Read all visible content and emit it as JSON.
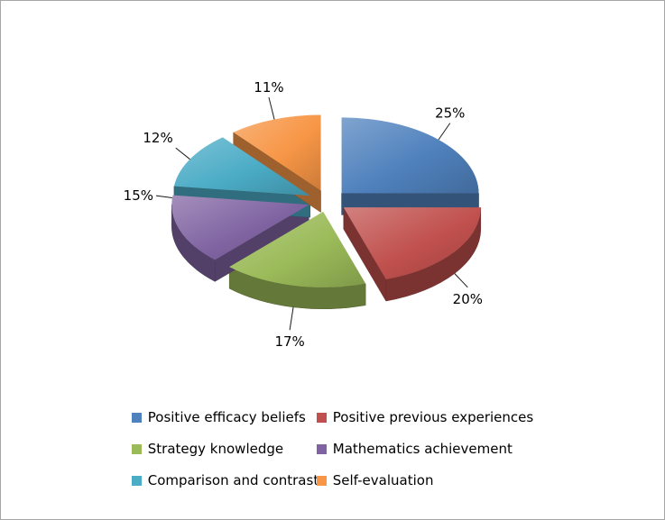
{
  "chart_data": {
    "type": "pie",
    "style": "3d-exploded",
    "title": "",
    "labels": [
      "Positive efficacy beliefs",
      "Positive previous experiences",
      "Strategy knowledge",
      "Mathematics achievement",
      "Comparison and contrast",
      "Self-evaluation"
    ],
    "values": [
      25,
      20,
      17,
      15,
      12,
      11
    ],
    "percent_labels": [
      "25%",
      "20%",
      "17%",
      "15%",
      "12%",
      "11%"
    ],
    "colors": [
      "#4F81BD",
      "#C0504D",
      "#9BBB59",
      "#8064A2",
      "#4BACC6",
      "#F79646"
    ],
    "legend_position": "bottom",
    "background_color": "#ffffff",
    "frame_border_color": "#a6a6a6",
    "label_color": "#000000",
    "leader_line_color": "#1a1a1a"
  }
}
